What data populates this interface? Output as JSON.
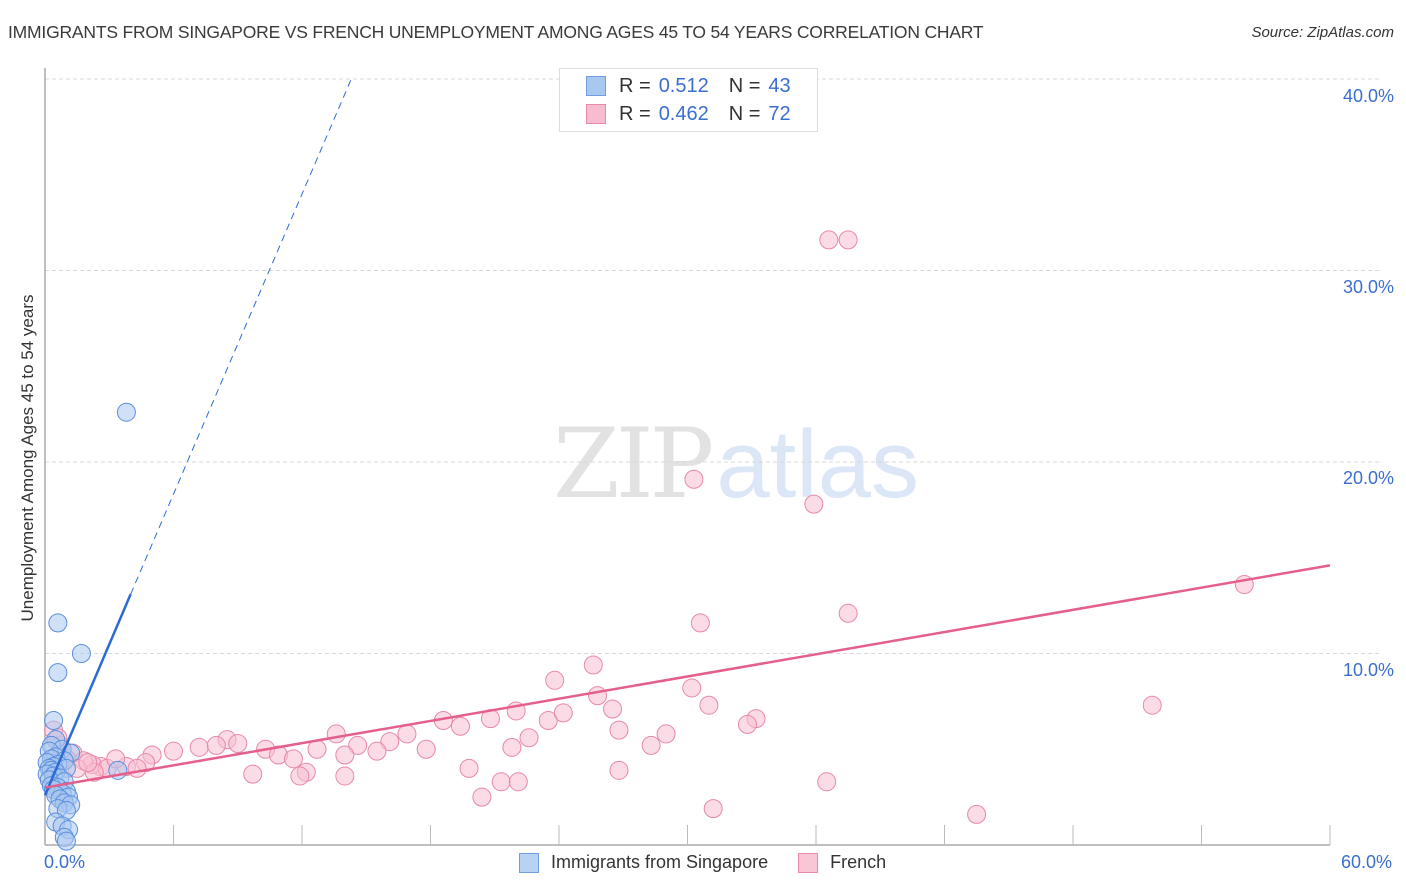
{
  "header": {
    "title": "IMMIGRANTS FROM SINGAPORE VS FRENCH UNEMPLOYMENT AMONG AGES 45 TO 54 YEARS CORRELATION CHART",
    "source": "Source: ZipAtlas.com"
  },
  "watermark": {
    "zip": "ZIP",
    "atlas": "atlas"
  },
  "legend": {
    "rows": [
      {
        "r_label": "R =",
        "r_value": "0.512",
        "n_label": "N =",
        "n_value": "43",
        "color": "#a8c8f0",
        "border": "#6f9fe0"
      },
      {
        "r_label": "R =",
        "r_value": "0.462",
        "n_label": "N =",
        "n_value": "72",
        "color": "#f8bcd0",
        "border": "#e98aaa"
      }
    ]
  },
  "axes": {
    "ylabel": "Unemployment Among Ages 45 to 54 years",
    "y_ticks": [
      "40.0%",
      "30.0%",
      "20.0%",
      "10.0%"
    ],
    "x_min_label": "0.0%",
    "x_max_label": "60.0%"
  },
  "bottom_legend": {
    "items": [
      {
        "label": "Immigrants from Singapore",
        "color": "#b8d2f4",
        "border": "#6f9fe0"
      },
      {
        "label": "French",
        "color": "#f9c6d6",
        "border": "#e98aaa"
      }
    ]
  },
  "colors": {
    "blue_fill": "#a9c7f0",
    "blue_stroke": "#5b8fdc",
    "blue_line": "#2a6bd4",
    "pink_fill": "#f7c0d1",
    "pink_stroke": "#e888a8",
    "pink_line": "#e45f8c",
    "tick_text": "#3a6fd0",
    "grid": "#d8d8d8"
  },
  "chart_data": {
    "type": "scatter",
    "title": "IMMIGRANTS FROM SINGAPORE VS FRENCH UNEMPLOYMENT AMONG AGES 45 TO 54 YEARS CORRELATION CHART",
    "xlabel": "",
    "ylabel": "Unemployment Among Ages 45 to 54 years",
    "xlim": [
      0,
      60
    ],
    "ylim": [
      0,
      42
    ],
    "x_ticks": [
      0,
      6,
      12,
      18,
      24,
      30,
      36,
      42,
      48,
      54,
      60
    ],
    "y_ticks": [
      10,
      20,
      30,
      40
    ],
    "grid": "horizontal dashed",
    "legend_position": "top-center and bottom",
    "series": [
      {
        "name": "Immigrants from Singapore",
        "R": 0.512,
        "N": 43,
        "trend": {
          "x0": 0,
          "y0": 2.6,
          "x1": 4.0,
          "y1": 13.1,
          "dashed_extension_to": [
            14.3,
            40.0
          ]
        },
        "points": [
          [
            3.8,
            22.6
          ],
          [
            0.6,
            11.6
          ],
          [
            1.7,
            10.0
          ],
          [
            0.6,
            9.0
          ],
          [
            0.4,
            6.5
          ],
          [
            0.5,
            5.5
          ],
          [
            0.3,
            5.2
          ],
          [
            0.8,
            5.0
          ],
          [
            0.2,
            4.9
          ],
          [
            1.2,
            4.8
          ],
          [
            0.5,
            4.6
          ],
          [
            0.3,
            4.5
          ],
          [
            0.9,
            4.4
          ],
          [
            0.1,
            4.3
          ],
          [
            0.6,
            4.2
          ],
          [
            0.4,
            4.1
          ],
          [
            0.2,
            4.0
          ],
          [
            1.0,
            4.0
          ],
          [
            3.4,
            3.9
          ],
          [
            0.3,
            3.9
          ],
          [
            0.5,
            3.8
          ],
          [
            0.1,
            3.7
          ],
          [
            0.4,
            3.6
          ],
          [
            0.7,
            3.5
          ],
          [
            0.2,
            3.4
          ],
          [
            0.9,
            3.3
          ],
          [
            0.3,
            3.1
          ],
          [
            0.6,
            3.0
          ],
          [
            0.4,
            2.9
          ],
          [
            1.0,
            2.8
          ],
          [
            0.8,
            2.7
          ],
          [
            0.5,
            2.6
          ],
          [
            1.1,
            2.5
          ],
          [
            0.7,
            2.4
          ],
          [
            0.9,
            2.2
          ],
          [
            1.2,
            2.1
          ],
          [
            0.6,
            1.9
          ],
          [
            1.0,
            1.8
          ],
          [
            0.5,
            1.2
          ],
          [
            0.8,
            1.0
          ],
          [
            1.1,
            0.8
          ],
          [
            0.9,
            0.4
          ],
          [
            1.0,
            0.2
          ]
        ]
      },
      {
        "name": "French",
        "R": 0.462,
        "N": 72,
        "trend": {
          "x0": 0,
          "y0": 3.0,
          "x1": 60,
          "y1": 14.6
        },
        "points": [
          [
            36.6,
            31.6
          ],
          [
            37.5,
            31.6
          ],
          [
            30.3,
            19.1
          ],
          [
            35.9,
            17.8
          ],
          [
            37.5,
            12.1
          ],
          [
            56.0,
            13.6
          ],
          [
            30.6,
            11.6
          ],
          [
            25.6,
            9.4
          ],
          [
            23.8,
            8.6
          ],
          [
            30.2,
            8.2
          ],
          [
            25.8,
            7.8
          ],
          [
            31.0,
            7.3
          ],
          [
            51.7,
            7.3
          ],
          [
            26.5,
            7.1
          ],
          [
            22.0,
            7.0
          ],
          [
            23.5,
            6.5
          ],
          [
            20.8,
            6.6
          ],
          [
            18.6,
            6.5
          ],
          [
            33.2,
            6.6
          ],
          [
            24.2,
            6.9
          ],
          [
            32.8,
            6.3
          ],
          [
            26.8,
            6.0
          ],
          [
            29.0,
            5.8
          ],
          [
            13.6,
            5.8
          ],
          [
            16.9,
            5.8
          ],
          [
            19.4,
            6.2
          ],
          [
            14.6,
            5.2
          ],
          [
            16.1,
            5.4
          ],
          [
            22.6,
            5.6
          ],
          [
            28.3,
            5.2
          ],
          [
            21.8,
            5.1
          ],
          [
            17.8,
            5.0
          ],
          [
            15.5,
            4.9
          ],
          [
            14.0,
            4.7
          ],
          [
            10.3,
            5.0
          ],
          [
            10.9,
            4.7
          ],
          [
            8.5,
            5.5
          ],
          [
            9.0,
            5.3
          ],
          [
            7.2,
            5.1
          ],
          [
            6.0,
            4.9
          ],
          [
            5.0,
            4.7
          ],
          [
            4.7,
            4.3
          ],
          [
            8.0,
            5.2
          ],
          [
            11.6,
            4.5
          ],
          [
            12.7,
            5.0
          ],
          [
            3.8,
            4.1
          ],
          [
            2.6,
            4.1
          ],
          [
            4.3,
            4.0
          ],
          [
            2.2,
            4.2
          ],
          [
            1.3,
            4.8
          ],
          [
            0.7,
            5.2
          ],
          [
            1.0,
            4.5
          ],
          [
            1.8,
            4.4
          ],
          [
            2.9,
            4.0
          ],
          [
            0.4,
            6.0
          ],
          [
            0.6,
            5.6
          ],
          [
            1.5,
            4.0
          ],
          [
            2.3,
            3.8
          ],
          [
            12.2,
            3.8
          ],
          [
            19.8,
            4.0
          ],
          [
            9.7,
            3.7
          ],
          [
            11.9,
            3.6
          ],
          [
            14.0,
            3.6
          ],
          [
            26.8,
            3.9
          ],
          [
            20.4,
            2.5
          ],
          [
            21.3,
            3.3
          ],
          [
            22.1,
            3.3
          ],
          [
            36.5,
            3.3
          ],
          [
            31.2,
            1.9
          ],
          [
            43.5,
            1.6
          ],
          [
            2.0,
            4.3
          ],
          [
            3.3,
            4.5
          ]
        ]
      }
    ]
  }
}
